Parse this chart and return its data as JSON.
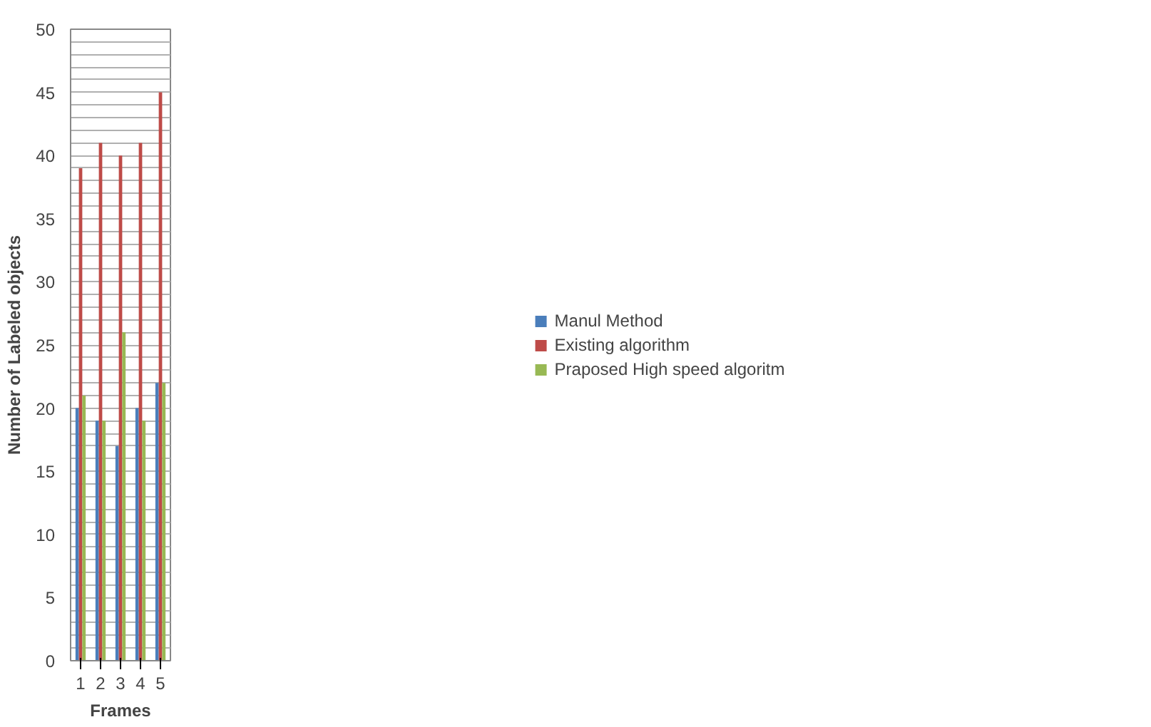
{
  "chart_data": {
    "type": "bar",
    "xlabel": "Frames",
    "ylabel": "Number of Labeled objects",
    "categories": [
      "1",
      "2",
      "3",
      "4",
      "5"
    ],
    "series": [
      {
        "name": "Manul Method",
        "color": "#4a7ebb",
        "values": [
          20,
          19,
          17,
          20,
          22
        ]
      },
      {
        "name": "Existing algorithm",
        "color": "#be4b48",
        "values": [
          39,
          41,
          40,
          41,
          45
        ]
      },
      {
        "name": "Praposed High speed algoritm",
        "color": "#98b954",
        "values": [
          21,
          19,
          26,
          19,
          22
        ]
      }
    ],
    "ylim": [
      0,
      50
    ],
    "yticks": [
      0,
      {
        "value": 1,
        "label": null
      },
      {
        "value": 2,
        "label": null
      },
      {
        "value": 3,
        "label": null
      },
      {
        "value": 4,
        "label": null
      },
      5,
      {
        "value": 6,
        "label": null
      },
      {
        "value": 7,
        "label": null
      },
      {
        "value": 8,
        "label": null
      },
      {
        "value": 9,
        "label": null
      },
      10,
      {
        "value": 11,
        "label": null
      },
      {
        "value": 12,
        "label": null
      },
      {
        "value": 13,
        "label": null
      },
      {
        "value": 14,
        "label": null
      },
      15,
      {
        "value": 16,
        "label": null
      },
      {
        "value": 17,
        "label": null
      },
      {
        "value": 18,
        "label": null
      },
      {
        "value": 19,
        "label": null
      },
      20,
      {
        "value": 21,
        "label": null
      },
      {
        "value": 22,
        "label": null
      },
      {
        "value": 23,
        "label": null
      },
      {
        "value": 24,
        "label": null
      },
      25,
      {
        "value": 26,
        "label": null
      },
      {
        "value": 27,
        "label": null
      },
      {
        "value": 28,
        "label": null
      },
      {
        "value": 29,
        "label": null
      },
      30,
      {
        "value": 31,
        "label": null
      },
      {
        "value": 32,
        "label": null
      },
      {
        "value": 33,
        "label": null
      },
      {
        "value": 34,
        "label": null
      },
      35,
      {
        "value": 36,
        "label": null
      },
      {
        "value": 37,
        "label": null
      },
      {
        "value": 38,
        "label": null
      },
      {
        "value": 39,
        "label": null
      },
      40,
      {
        "value": 41,
        "label": null
      },
      {
        "value": 42,
        "label": null
      },
      {
        "value": 43,
        "label": null
      },
      {
        "value": 44,
        "label": null
      },
      45,
      {
        "value": 46,
        "label": null
      },
      {
        "value": 47,
        "label": null
      },
      {
        "value": 48,
        "label": null
      },
      {
        "value": 49,
        "label": null
      },
      50
    ],
    "grid": "y",
    "legend": "right"
  }
}
